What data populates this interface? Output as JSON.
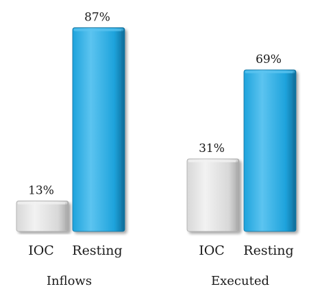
{
  "chart_data": {
    "type": "bar",
    "groups": [
      {
        "label": "Inflows",
        "bars": [
          {
            "category": "IOC",
            "value": 13,
            "label": "13%",
            "color_key": "ioc"
          },
          {
            "category": "Resting",
            "value": 87,
            "label": "87%",
            "color_key": "resting"
          }
        ]
      },
      {
        "label": "Executed",
        "bars": [
          {
            "category": "IOC",
            "value": 31,
            "label": "31%",
            "color_key": "ioc"
          },
          {
            "category": "Resting",
            "value": 69,
            "label": "69%",
            "color_key": "resting"
          }
        ]
      }
    ],
    "ylim": [
      0,
      100
    ],
    "grid": false,
    "legend": "none",
    "title": "",
    "xlabel": "",
    "ylabel": ""
  },
  "colors": {
    "ioc_light": "#f2f2f2",
    "ioc_mid": "#d8d8d8",
    "ioc_dark": "#a9a9a9",
    "resting_light": "#5cc4f0",
    "resting_mid": "#1ea3dc",
    "resting_dark": "#0f6f9c",
    "text": "#1a1a1a"
  }
}
